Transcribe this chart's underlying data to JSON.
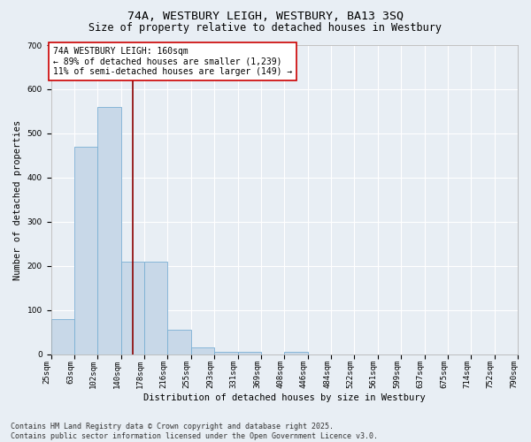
{
  "title": "74A, WESTBURY LEIGH, WESTBURY, BA13 3SQ",
  "subtitle": "Size of property relative to detached houses in Westbury",
  "xlabel": "Distribution of detached houses by size in Westbury",
  "ylabel": "Number of detached properties",
  "bar_values": [
    80,
    470,
    560,
    210,
    210,
    55,
    15,
    5,
    5,
    0,
    5,
    0,
    0,
    0,
    0,
    0,
    0,
    0,
    0,
    0
  ],
  "categories": [
    "25sqm",
    "63sqm",
    "102sqm",
    "140sqm",
    "178sqm",
    "216sqm",
    "255sqm",
    "293sqm",
    "331sqm",
    "369sqm",
    "408sqm",
    "446sqm",
    "484sqm",
    "522sqm",
    "561sqm",
    "599sqm",
    "637sqm",
    "675sqm",
    "714sqm",
    "752sqm",
    "790sqm"
  ],
  "bar_color": "#c8d8e8",
  "bar_edge_color": "#7aafd4",
  "vertical_line_color": "#8b0000",
  "vertical_line_x": 3.5,
  "annotation_text": "74A WESTBURY LEIGH: 160sqm\n← 89% of detached houses are smaller (1,239)\n11% of semi-detached houses are larger (149) →",
  "annotation_box_color": "#ffffff",
  "annotation_box_edge": "#cc0000",
  "ylim": [
    0,
    700
  ],
  "yticks": [
    0,
    100,
    200,
    300,
    400,
    500,
    600,
    700
  ],
  "background_color": "#e8eef4",
  "grid_color": "#ffffff",
  "footer_text": "Contains HM Land Registry data © Crown copyright and database right 2025.\nContains public sector information licensed under the Open Government Licence v3.0.",
  "title_fontsize": 9.5,
  "subtitle_fontsize": 8.5,
  "axis_label_fontsize": 7.5,
  "tick_fontsize": 6.5,
  "annotation_fontsize": 7.0,
  "footer_fontsize": 6.0
}
